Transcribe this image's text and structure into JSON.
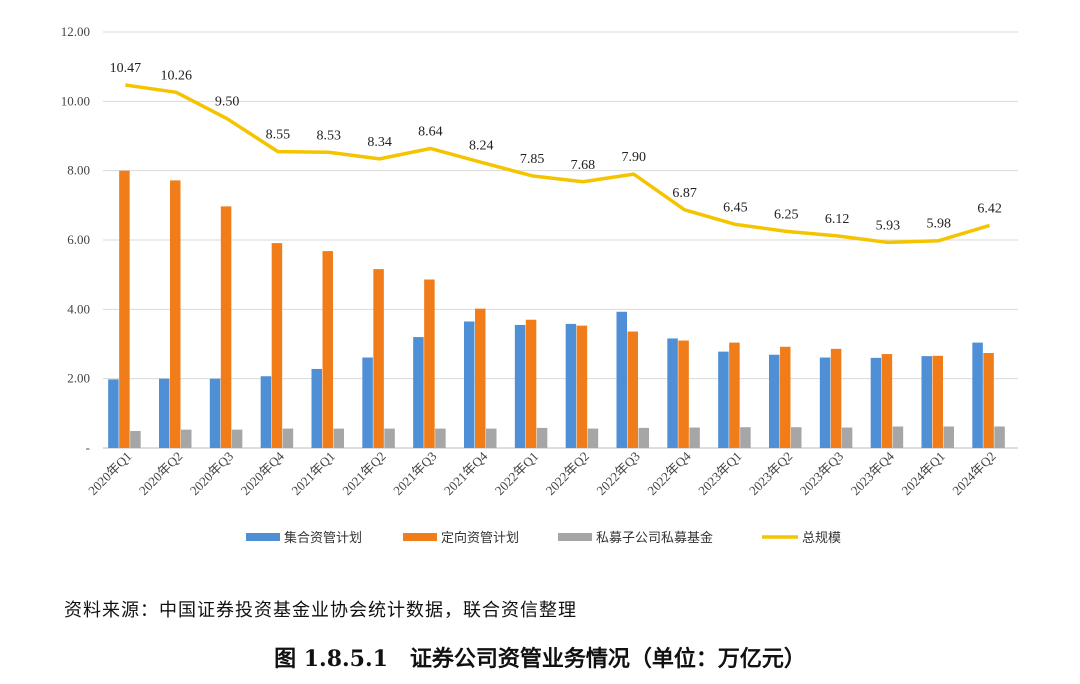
{
  "chart_data": {
    "type": "bar",
    "categories": [
      "2020年Q1",
      "2020年Q2",
      "2020年Q3",
      "2020年Q4",
      "2021年Q1",
      "2021年Q2",
      "2021年Q3",
      "2021年Q4",
      "2022年Q1",
      "2022年Q2",
      "2022年Q3",
      "2022年Q4",
      "2023年Q1",
      "2023年Q2",
      "2023年Q3",
      "2023年Q4",
      "2024年Q1",
      "2024年Q2"
    ],
    "series": [
      {
        "name": "集合资管计划",
        "type": "bar",
        "color": "#4f8fd6",
        "values": [
          1.98,
          2.0,
          2.0,
          2.07,
          2.28,
          2.61,
          3.2,
          3.65,
          3.55,
          3.58,
          3.93,
          3.16,
          2.78,
          2.69,
          2.61,
          2.6,
          2.65,
          3.04
        ]
      },
      {
        "name": "定向资管计划",
        "type": "bar",
        "color": "#f07d1a",
        "values": [
          8.0,
          7.72,
          6.97,
          5.91,
          5.68,
          5.16,
          4.86,
          4.02,
          3.7,
          3.53,
          3.36,
          3.1,
          3.04,
          2.92,
          2.86,
          2.71,
          2.66,
          2.74
        ]
      },
      {
        "name": "私募子公司私募基金",
        "type": "bar",
        "color": "#a6a6a6",
        "values": [
          0.49,
          0.53,
          0.53,
          0.56,
          0.56,
          0.56,
          0.56,
          0.56,
          0.58,
          0.56,
          0.58,
          0.59,
          0.6,
          0.6,
          0.59,
          0.62,
          0.62,
          0.62
        ]
      },
      {
        "name": "总规模",
        "type": "line",
        "color": "#f5c400",
        "values": [
          10.47,
          10.26,
          9.5,
          8.55,
          8.53,
          8.34,
          8.64,
          8.24,
          7.85,
          7.68,
          7.9,
          6.87,
          6.45,
          6.25,
          6.12,
          5.93,
          5.98,
          6.42
        ],
        "labels": [
          "10.47",
          "10.26",
          "9.50",
          "8.55",
          "8.53",
          "8.34",
          "8.64",
          "8.24",
          "7.85",
          "7.68",
          "7.90",
          "6.87",
          "6.45",
          "6.25",
          "6.12",
          "5.93",
          "5.98",
          "6.42"
        ]
      }
    ],
    "y_ticks": [
      "-",
      "2.00",
      "4.00",
      "6.00",
      "8.00",
      "10.00",
      "12.00"
    ],
    "ylim": [
      0,
      12
    ],
    "grid": true,
    "legend_position": "bottom"
  },
  "source_note": "资料来源：中国证券投资基金业协会统计数据，联合资信整理",
  "caption": "图 1.8.5.1　证券公司资管业务情况（单位：万亿元）"
}
